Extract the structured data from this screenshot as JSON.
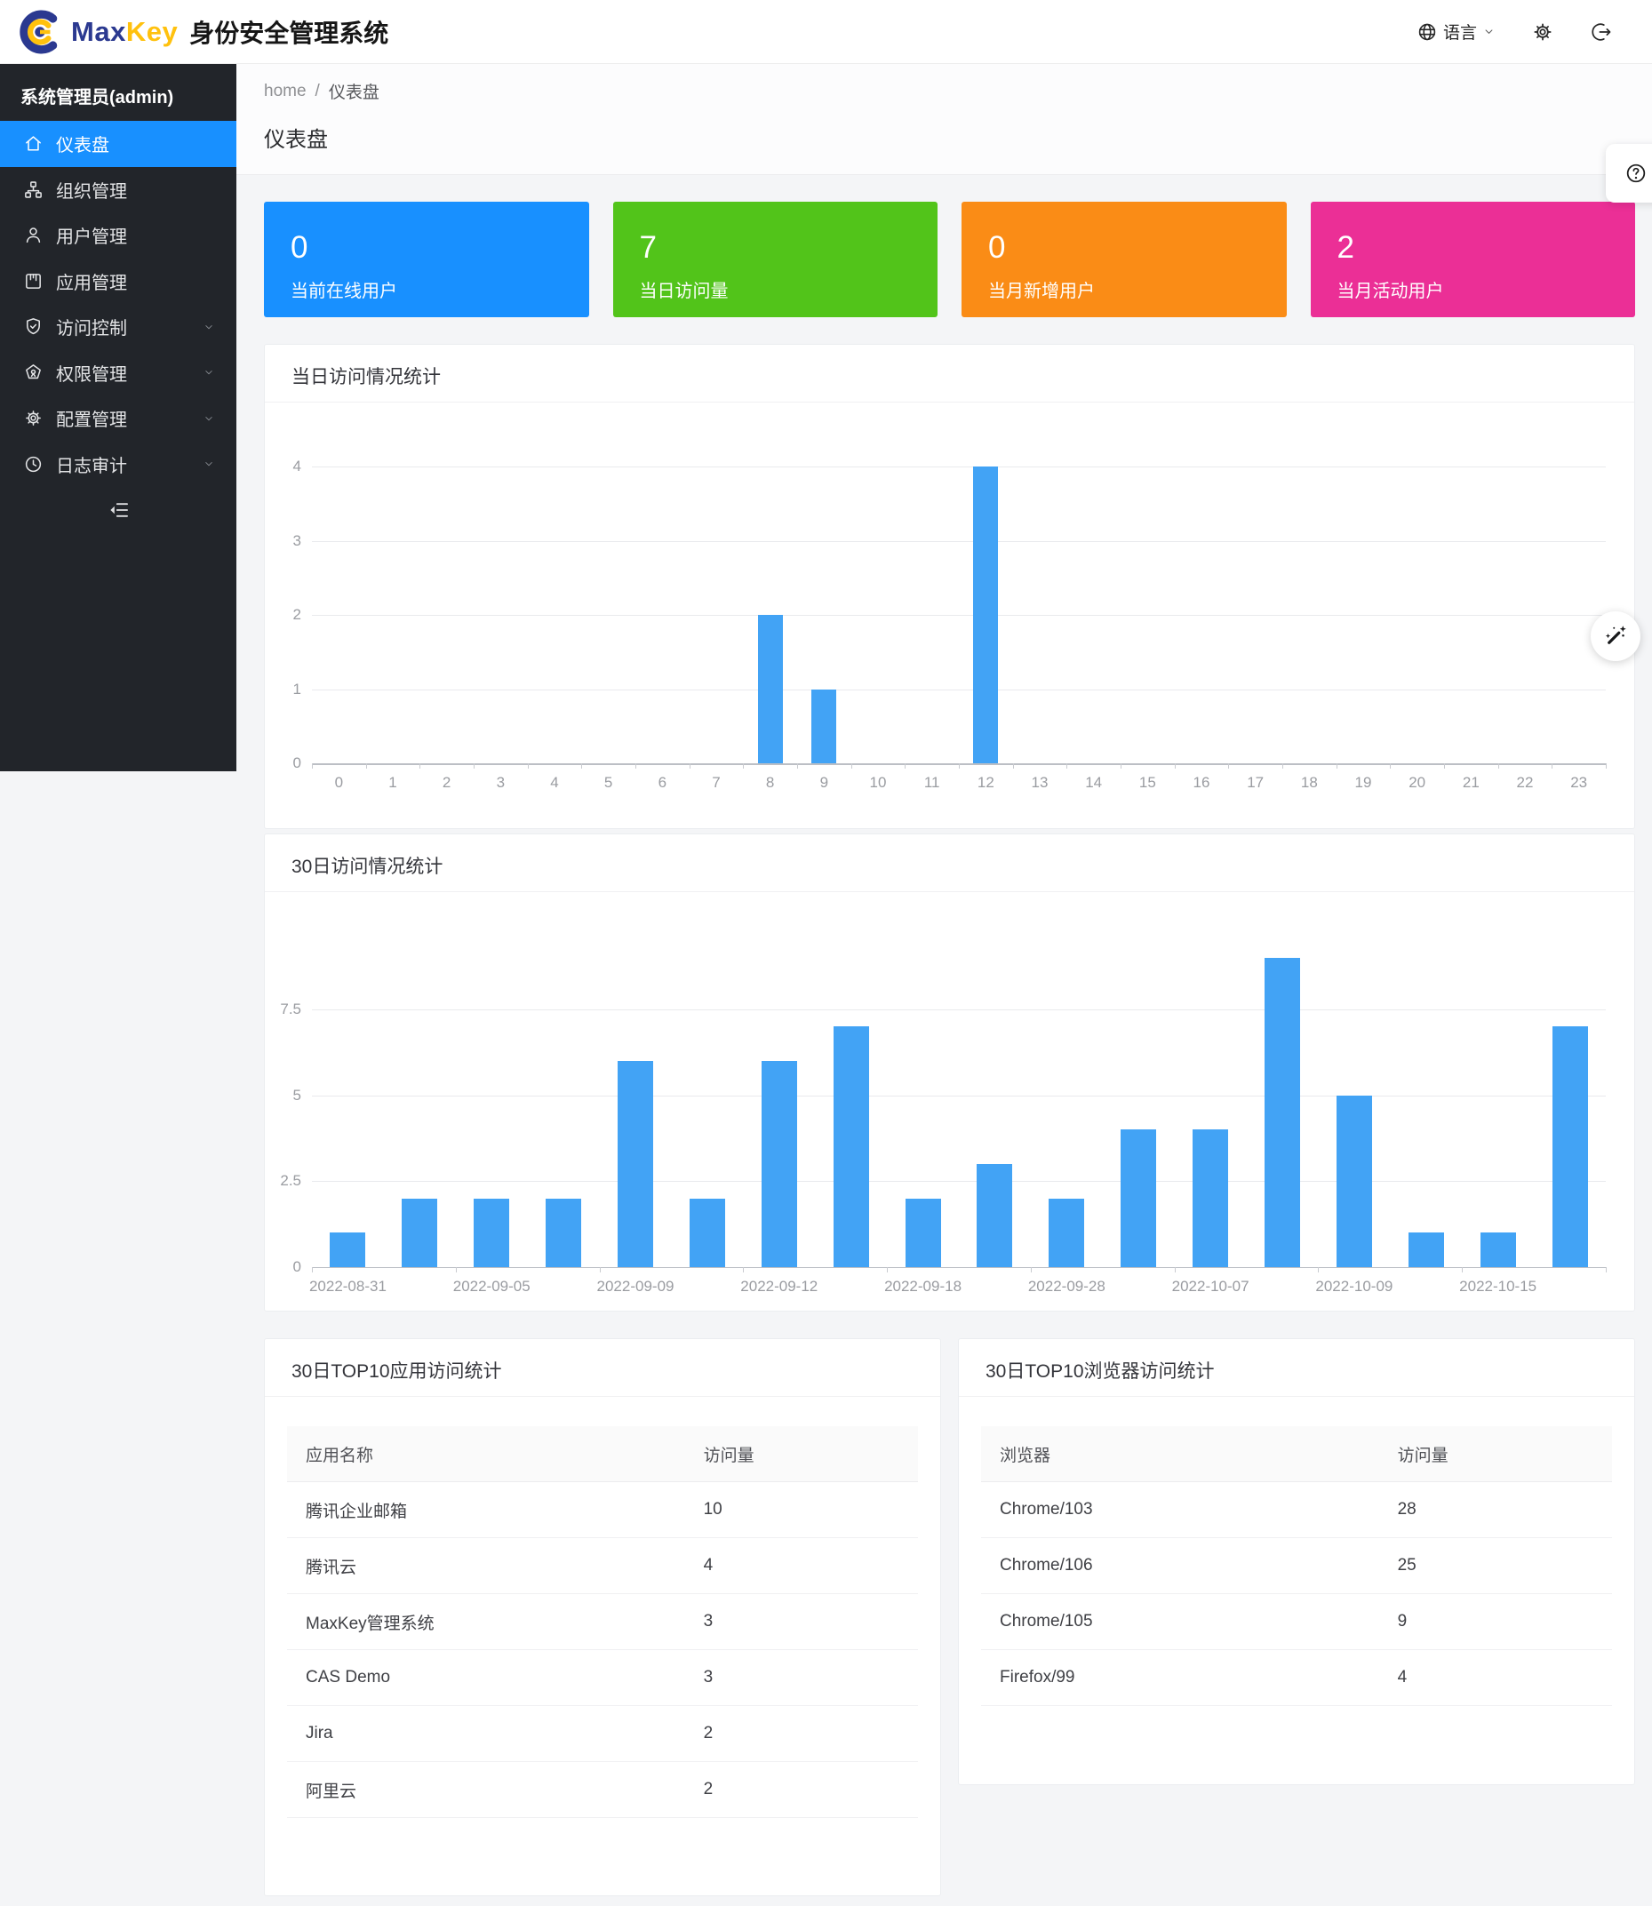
{
  "header": {
    "brand_max": "Max",
    "brand_key": "Key",
    "app_title": "身份安全管理系统",
    "language_label": "语言"
  },
  "icons": [
    "globe-icon",
    "chevron-down-icon",
    "gear-icon",
    "logout-icon",
    "home-icon",
    "org-icon",
    "user-icon",
    "app-icon",
    "shield-check-icon",
    "certificate-icon",
    "clock-icon",
    "menu-fold-icon",
    "question-icon",
    "magic-wand-icon"
  ],
  "sidebar": {
    "admin_label": "系统管理员(admin)",
    "items": [
      {
        "name": "dashboard",
        "label": "仪表盘",
        "icon": "home-icon",
        "active": true,
        "has_submenu": false
      },
      {
        "name": "organization",
        "label": "组织管理",
        "icon": "org-icon",
        "active": false,
        "has_submenu": false
      },
      {
        "name": "users",
        "label": "用户管理",
        "icon": "user-icon",
        "active": false,
        "has_submenu": false
      },
      {
        "name": "applications",
        "label": "应用管理",
        "icon": "app-icon",
        "active": false,
        "has_submenu": false
      },
      {
        "name": "access-control",
        "label": "访问控制",
        "icon": "shield-check-icon",
        "active": false,
        "has_submenu": true
      },
      {
        "name": "permissions",
        "label": "权限管理",
        "icon": "certificate-icon",
        "active": false,
        "has_submenu": true
      },
      {
        "name": "configuration",
        "label": "配置管理",
        "icon": "gear-icon",
        "active": false,
        "has_submenu": true
      },
      {
        "name": "log-audit",
        "label": "日志审计",
        "icon": "clock-icon",
        "active": false,
        "has_submenu": true
      }
    ]
  },
  "breadcrumb": {
    "home": "home",
    "separator": "/",
    "current": "仪表盘"
  },
  "page_title": "仪表盘",
  "stat_cards": [
    {
      "name": "online-users",
      "value": "0",
      "label": "当前在线用户",
      "color": "#1890ff"
    },
    {
      "name": "today-visits",
      "value": "7",
      "label": "当日访问量",
      "color": "#52c41a"
    },
    {
      "name": "month-new-users",
      "value": "0",
      "label": "当月新增用户",
      "color": "#fa8c16"
    },
    {
      "name": "month-active-users",
      "value": "2",
      "label": "当月活动用户",
      "color": "#eb2f96"
    }
  ],
  "chart_data": [
    {
      "type": "bar",
      "title": "当日访问情况统计",
      "bar_color": "#42a3f5",
      "categories": [
        "0",
        "1",
        "2",
        "3",
        "4",
        "5",
        "6",
        "7",
        "8",
        "9",
        "10",
        "11",
        "12",
        "13",
        "14",
        "15",
        "16",
        "17",
        "18",
        "19",
        "20",
        "21",
        "22",
        "23"
      ],
      "values": [
        0,
        0,
        0,
        0,
        0,
        0,
        0,
        0,
        2,
        1,
        0,
        0,
        4,
        0,
        0,
        0,
        0,
        0,
        0,
        0,
        0,
        0,
        0,
        0
      ],
      "yticks": [
        0,
        1,
        2,
        3,
        4
      ],
      "ylim": [
        0,
        4.8
      ],
      "xlabel": "",
      "ylabel": "",
      "grid": true,
      "legend": "none"
    },
    {
      "type": "bar",
      "title": "30日访问情况统计",
      "bar_color": "#42a3f5",
      "categories": [
        "2022-08-31",
        "",
        "2022-09-05",
        "",
        "2022-09-09",
        "",
        "2022-09-12",
        "",
        "2022-09-18",
        "",
        "2022-09-28",
        "",
        "2022-10-07",
        "",
        "2022-10-09",
        "",
        "2022-10-15",
        ""
      ],
      "values": [
        1,
        2,
        2,
        2,
        6,
        2,
        6,
        7,
        2,
        3,
        2,
        4,
        4,
        9,
        5,
        1,
        1,
        7
      ],
      "yticks": [
        0,
        2.5,
        5,
        7.5
      ],
      "ylim": [
        0,
        9.5
      ],
      "xlabel": "",
      "ylabel": "",
      "grid": true,
      "legend": "none"
    }
  ],
  "tables": [
    {
      "name": "top-apps",
      "title": "30日TOP10应用访问统计",
      "columns": [
        "应用名称",
        "访问量"
      ],
      "rows": [
        [
          "腾讯企业邮箱",
          "10"
        ],
        [
          "腾讯云",
          "4"
        ],
        [
          "MaxKey管理系统",
          "3"
        ],
        [
          "CAS Demo",
          "3"
        ],
        [
          "Jira",
          "2"
        ],
        [
          "阿里云",
          "2"
        ]
      ]
    },
    {
      "name": "top-browsers",
      "title": "30日TOP10浏览器访问统计",
      "columns": [
        "浏览器",
        "访问量"
      ],
      "rows": [
        [
          "Chrome/103",
          "28"
        ],
        [
          "Chrome/106",
          "25"
        ],
        [
          "Chrome/105",
          "9"
        ],
        [
          "Firefox/99",
          "4"
        ]
      ]
    }
  ]
}
